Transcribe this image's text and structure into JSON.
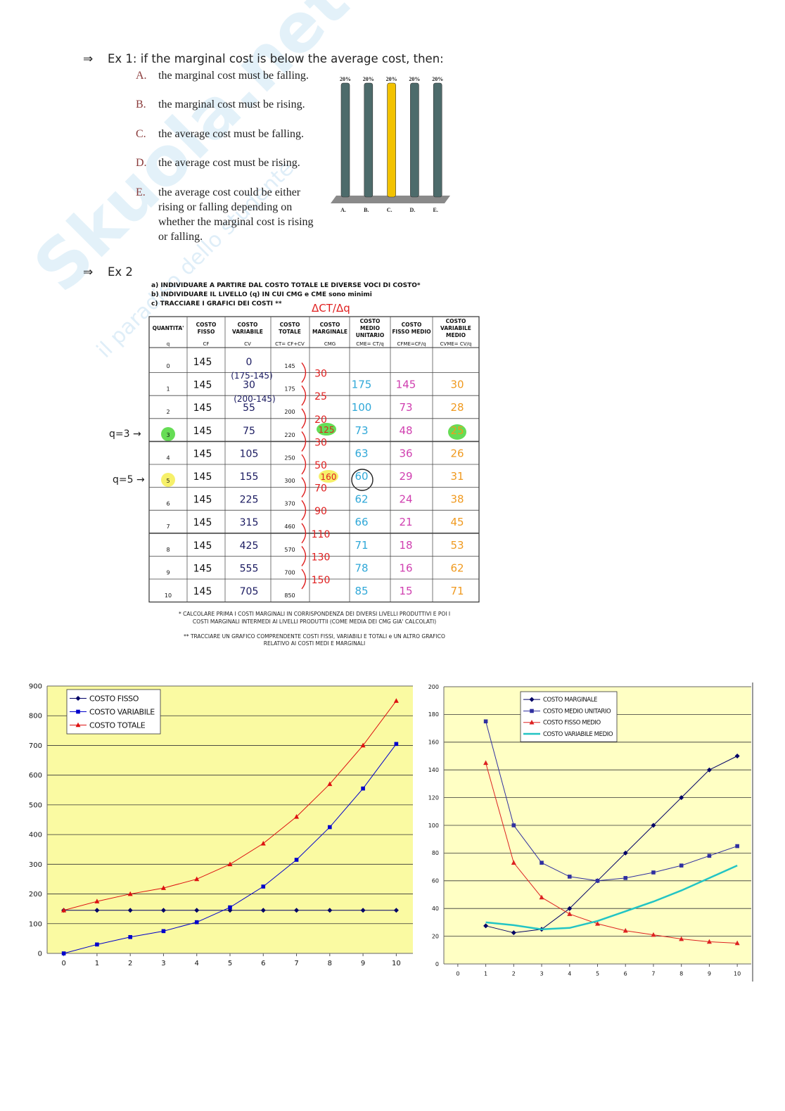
{
  "watermark": [
    "Skuola.net",
    "il paradiso dello studente"
  ],
  "ex1": {
    "arrow": "⇒",
    "title": "Ex 1: if the marginal cost is below the average cost, then:",
    "options": [
      {
        "letter": "A.",
        "lines": [
          "the marginal cost must be falling."
        ]
      },
      {
        "letter": "B.",
        "lines": [
          "the marginal cost must be rising."
        ]
      },
      {
        "letter": "C.",
        "lines": [
          "the average cost must be falling."
        ]
      },
      {
        "letter": "D.",
        "lines": [
          "the average cost must be rising."
        ]
      },
      {
        "letter": "E.",
        "lines": [
          "the average cost could be either",
          "rising or falling depending on",
          "whether the marginal cost is rising",
          "or falling."
        ]
      }
    ]
  },
  "ex2": {
    "arrow": "⇒",
    "title": "Ex 2",
    "instructions": [
      "a) INDIVIDUARE A PARTIRE DAL COSTO TOTALE LE DIVERSE VOCI DI COSTO*",
      "b) INDIVIDUARE IL LIVELLO (q) IN CUI CMG e CME sono minimi",
      "c) TRACCIARE I GRAFICI DEI COSTI **"
    ],
    "delta_note": "ΔCT/Δq",
    "table": {
      "headers": [
        [
          "QUANTITA'"
        ],
        [
          "COSTO",
          "FISSO"
        ],
        [
          "COSTO",
          "VARIABILE"
        ],
        [
          "COSTO",
          "TOTALE"
        ],
        [
          "COSTO",
          "MARGINALE"
        ],
        [
          "COSTO",
          "MEDIO",
          "UNITARIO"
        ],
        [
          "COSTO",
          "FISSO MEDIO"
        ],
        [
          "COSTO",
          "VARIABILE",
          "MEDIO"
        ]
      ],
      "formulas": [
        "q",
        "CF",
        "CV",
        "CT= CF+CV",
        "CMG",
        "CME= CT/q",
        "CFME=CF/q",
        "CVME= CV/q"
      ],
      "rows": [
        [
          0,
          145,
          0,
          145,
          null,
          null,
          null
        ],
        [
          1,
          145,
          30,
          175,
          175,
          145,
          30
        ],
        [
          2,
          145,
          55,
          200,
          100,
          73,
          28
        ],
        [
          3,
          145,
          75,
          220,
          73,
          48,
          25
        ],
        [
          4,
          145,
          105,
          250,
          63,
          36,
          26
        ],
        [
          5,
          145,
          155,
          300,
          60,
          29,
          31
        ],
        [
          6,
          145,
          225,
          370,
          62,
          24,
          38
        ],
        [
          7,
          145,
          315,
          460,
          66,
          21,
          45
        ],
        [
          8,
          145,
          425,
          570,
          71,
          18,
          53
        ],
        [
          9,
          145,
          555,
          700,
          78,
          16,
          62
        ],
        [
          10,
          145,
          705,
          850,
          85,
          15,
          71
        ]
      ],
      "marginal": [
        30,
        25,
        20,
        30,
        50,
        70,
        90,
        110,
        130,
        150
      ],
      "cmg_at_q3": 125,
      "cmg_at_q5": 160,
      "cv_notes": [
        "(175-145)",
        "(200-145)"
      ],
      "q_markers": [
        "q=3 →",
        "q=5 →"
      ]
    },
    "footnotes": [
      "* CALCOLARE PRIMA I COSTI MARGINALI IN CORRISPONDENZA DEI DIVERSI LIVELLI PRODUTTIVI E POI I",
      "COSTI MARGINALI INTERMEDI AI LIVELLI PRODUTTII (COME MEDIA DEI CMG GIA' CALCOLATI)",
      "** TRACCIARE UN GRAFICO COMPRENDENTE COSTI FISSI, VARIABILI E TOTALI e UN ALTRO GRAFICO",
      "RELATIVO AI COSTI MEDI E MARGINALI"
    ]
  },
  "chart_data": [
    {
      "type": "bar",
      "categories": [
        "A.",
        "B.",
        "C.",
        "D.",
        "E."
      ],
      "values": [
        20,
        20,
        20,
        20,
        20
      ],
      "value_labels": [
        "20%",
        "20%",
        "20%",
        "20%",
        "20%"
      ],
      "colors": [
        "#4d6b6b",
        "#4d6b6b",
        "#f2c200",
        "#4d6b6b",
        "#4d6b6b"
      ]
    },
    {
      "type": "line",
      "x": [
        0,
        1,
        2,
        3,
        4,
        5,
        6,
        7,
        8,
        9,
        10
      ],
      "xlim": [
        -0.5,
        10.5
      ],
      "ylim": [
        0,
        900
      ],
      "xticks": [
        0,
        1,
        2,
        3,
        4,
        5,
        6,
        7,
        8,
        9,
        10
      ],
      "yticks": [
        0,
        100,
        200,
        300,
        400,
        500,
        600,
        700,
        800,
        900
      ],
      "grid": true,
      "legend": "upper left",
      "series": [
        {
          "name": "COSTO FISSO",
          "color": "#000066",
          "marker": "diamond",
          "values": [
            145,
            145,
            145,
            145,
            145,
            145,
            145,
            145,
            145,
            145,
            145
          ]
        },
        {
          "name": "COSTO VARIABILE",
          "color": "#0000cc",
          "marker": "square",
          "values": [
            0,
            30,
            55,
            75,
            105,
            155,
            225,
            315,
            425,
            555,
            705
          ]
        },
        {
          "name": "COSTO TOTALE",
          "color": "#dd1111",
          "marker": "triangle",
          "values": [
            145,
            175,
            200,
            220,
            250,
            300,
            370,
            460,
            570,
            700,
            850
          ]
        }
      ]
    },
    {
      "type": "line",
      "x": [
        1,
        2,
        3,
        4,
        5,
        6,
        7,
        8,
        9,
        10
      ],
      "xlim": [
        -0.5,
        10.5
      ],
      "ylim": [
        0,
        200
      ],
      "xticks": [
        0,
        1,
        2,
        3,
        4,
        5,
        6,
        7,
        8,
        9,
        10
      ],
      "yticks": [
        0,
        20,
        40,
        60,
        80,
        100,
        120,
        140,
        160,
        180,
        200
      ],
      "grid": true,
      "legend": "upper right",
      "series": [
        {
          "name": "COSTO MARGINALE",
          "color": "#000066",
          "marker": "diamond",
          "values": [
            27.5,
            22.5,
            25,
            40,
            60,
            80,
            100,
            120,
            140,
            150
          ]
        },
        {
          "name": "COSTO MEDIO UNITARIO",
          "color": "#3030a0",
          "marker": "square",
          "values": [
            175,
            100,
            73,
            63,
            60,
            62,
            66,
            71,
            78,
            85
          ]
        },
        {
          "name": "COSTO FISSO MEDIO",
          "color": "#dd2222",
          "marker": "triangle",
          "values": [
            145,
            73,
            48,
            36,
            29,
            24,
            21,
            18,
            16,
            15
          ]
        },
        {
          "name": "COSTO VARIABILE MEDIO",
          "color": "#22c4c4",
          "marker": "none",
          "values": [
            30,
            28,
            25,
            26,
            31,
            38,
            45,
            53,
            62,
            71
          ]
        }
      ]
    }
  ]
}
